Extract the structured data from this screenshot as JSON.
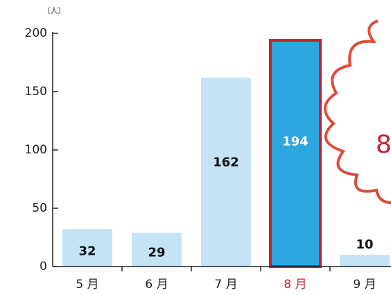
{
  "chart_data": {
    "type": "bar",
    "unit_label": "（人）",
    "categories": [
      "5 月",
      "6 月",
      "7 月",
      "8 月",
      "9 月"
    ],
    "values": [
      32,
      29,
      162,
      194,
      10
    ],
    "color": "#c4e3f5",
    "highlight_category": "8 月",
    "highlight_color": "#2ea7e0",
    "highlight_border_color": "#c8202f",
    "ylim": [
      0,
      200
    ],
    "yticks": [
      0,
      50,
      100,
      150,
      200
    ],
    "annotation": "8"
  }
}
